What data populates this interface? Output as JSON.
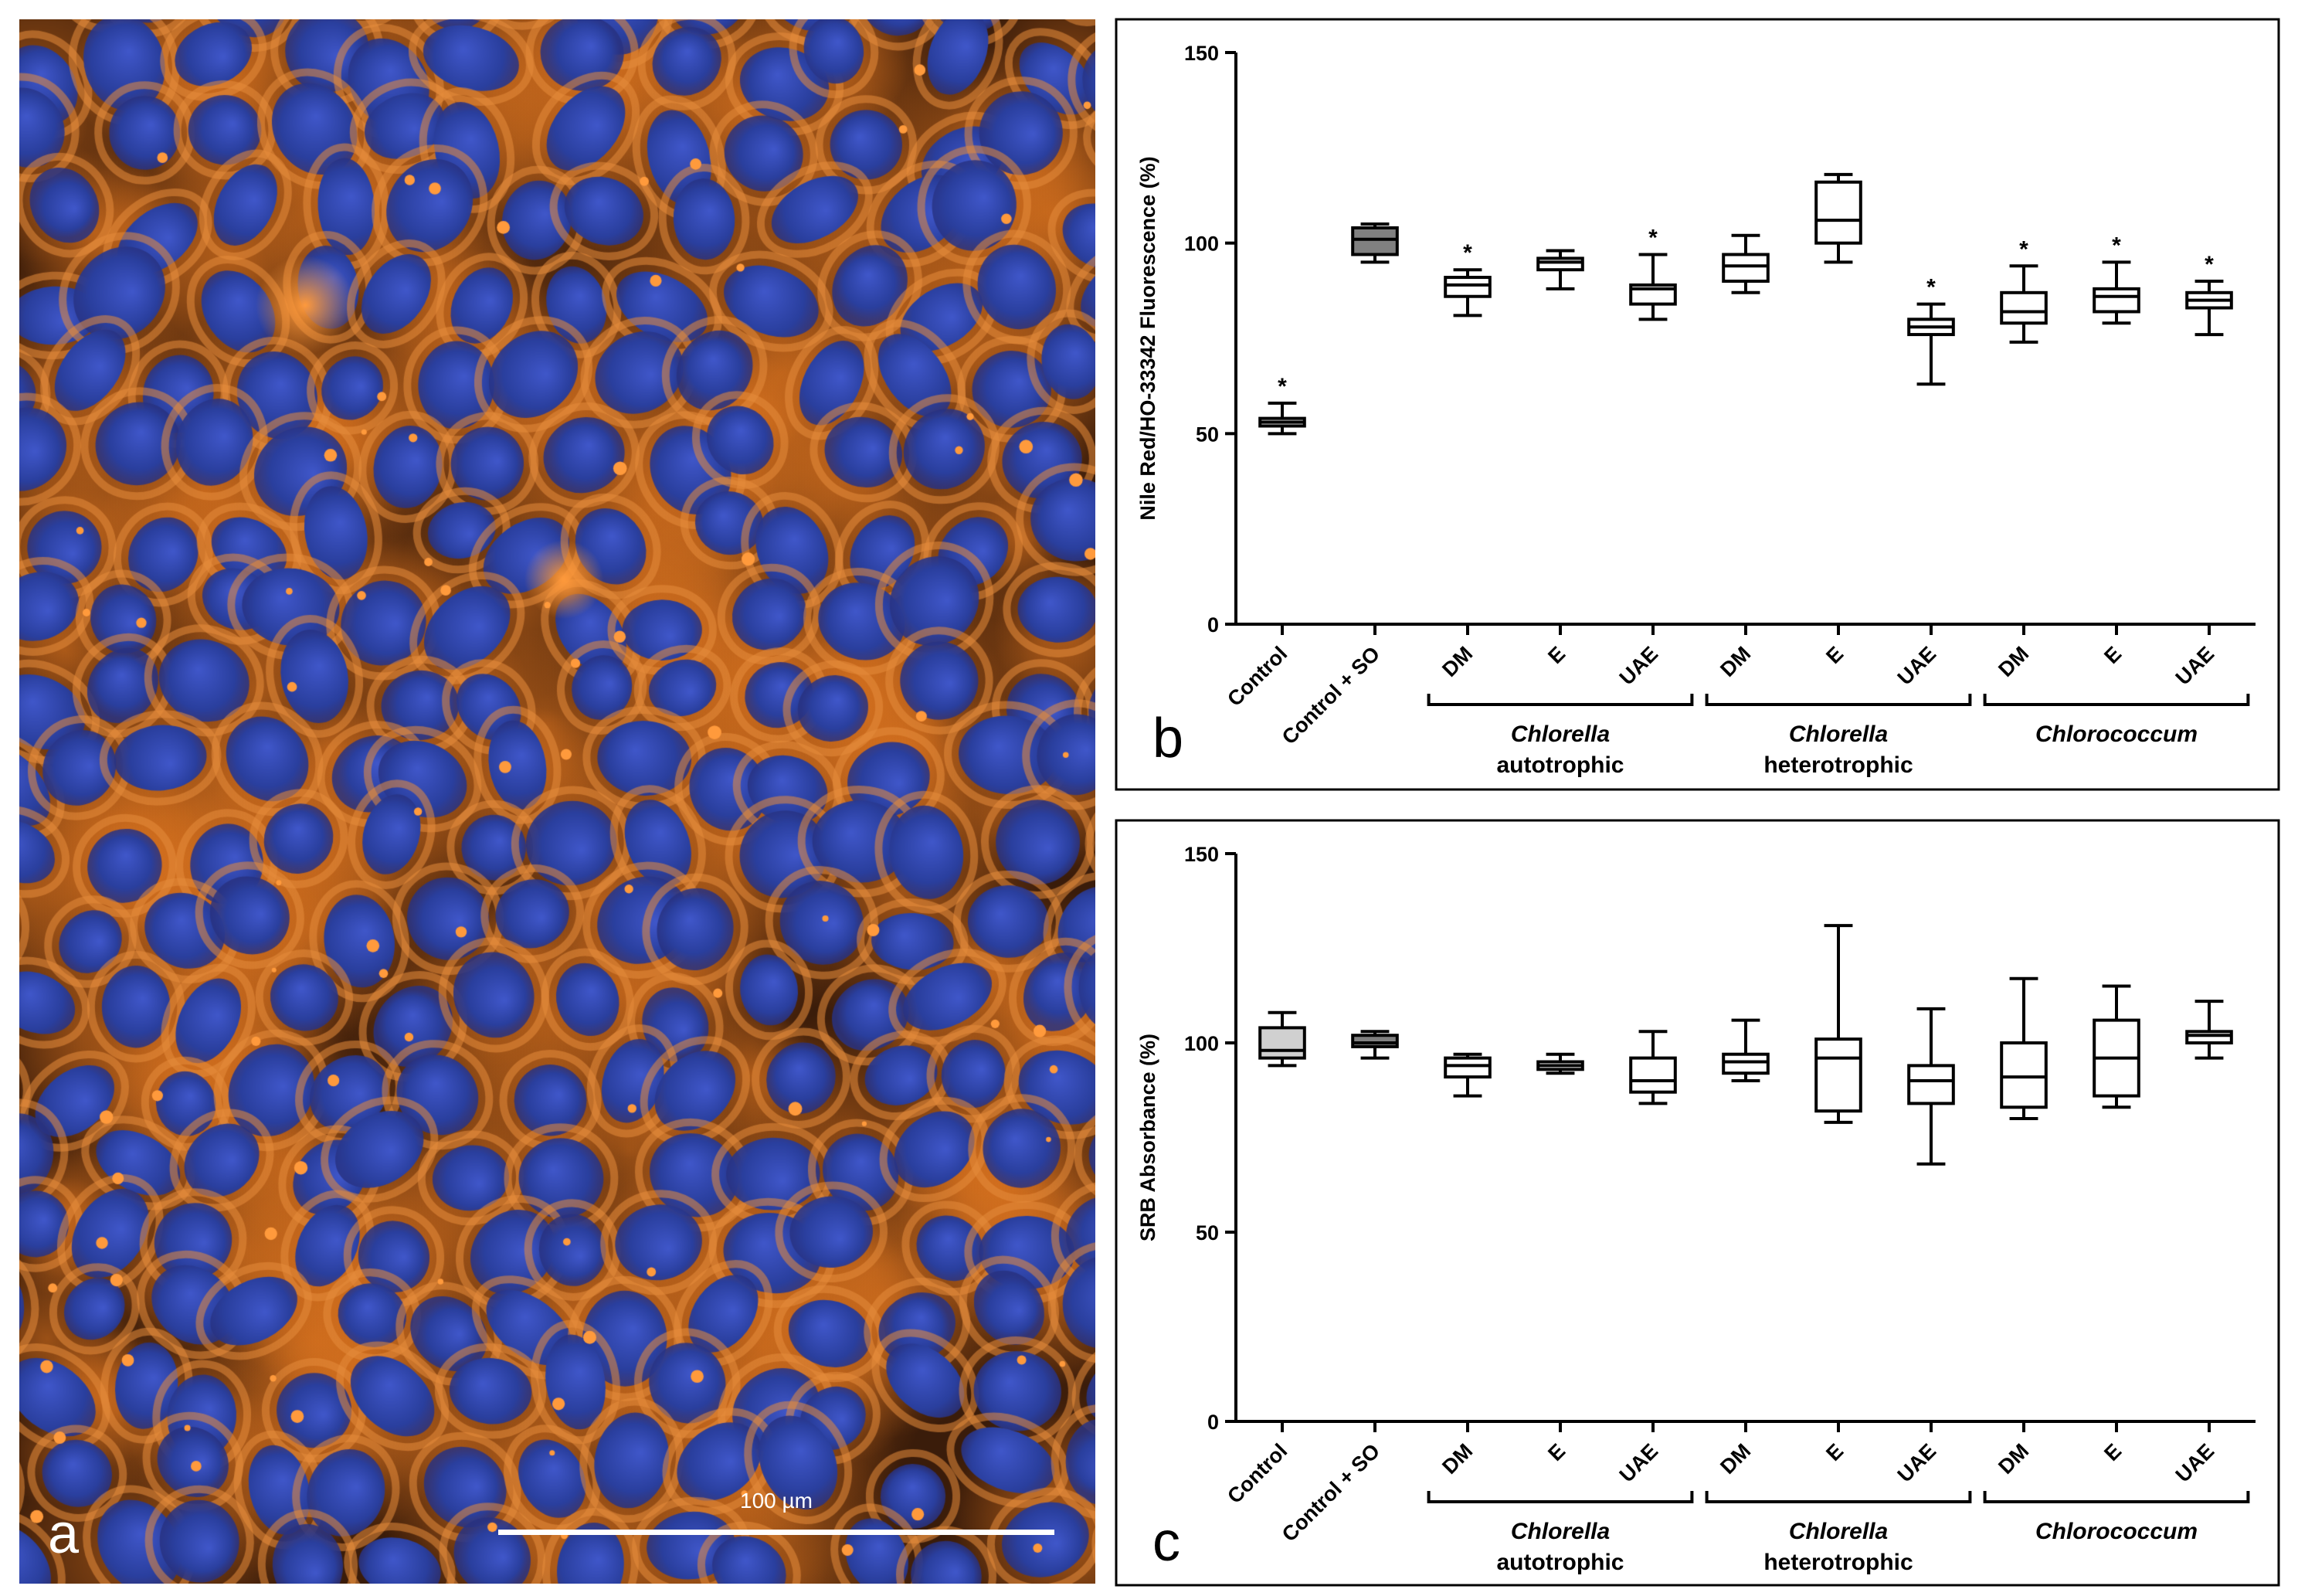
{
  "panels": {
    "a": {
      "letter": "a",
      "scale_bar_label": "100 µm",
      "colors": {
        "background": "#3a1c0a",
        "cytoplasm": "#d8721f",
        "nucleus": "#2a3f9e",
        "lipid": "#ff9a3c"
      }
    },
    "b": {
      "letter": "b",
      "chart_data": {
        "type": "box",
        "ylabel": "Nile Red/HO-33342 Fluorescence (%)",
        "ylim": [
          0,
          150
        ],
        "yticks": [
          0,
          50,
          100,
          150
        ],
        "categories": [
          "Control",
          "Control + SO",
          "DM",
          "E",
          "UAE",
          "DM",
          "E",
          "UAE",
          "DM",
          "E",
          "UAE"
        ],
        "groups": [
          {
            "name": "Chlorella",
            "sub": "autotrophic",
            "from": 2,
            "to": 4
          },
          {
            "name": "Chlorella",
            "sub": "heterotrophic",
            "from": 5,
            "to": 7
          },
          {
            "name": "Chlorococcum",
            "sub": "",
            "from": 8,
            "to": 10
          }
        ],
        "boxes": [
          {
            "min": 50,
            "q1": 52,
            "median": 53,
            "q3": 54,
            "max": 58,
            "fill": "#d0d0d0",
            "sig": "*"
          },
          {
            "min": 95,
            "q1": 97,
            "median": 101,
            "q3": 104,
            "max": 105,
            "fill": "#808080",
            "sig": ""
          },
          {
            "min": 81,
            "q1": 86,
            "median": 89,
            "q3": 91,
            "max": 93,
            "fill": "#ffffff",
            "sig": "*"
          },
          {
            "min": 88,
            "q1": 93,
            "median": 95,
            "q3": 96,
            "max": 98,
            "fill": "#ffffff",
            "sig": ""
          },
          {
            "min": 80,
            "q1": 84,
            "median": 88,
            "q3": 89,
            "max": 97,
            "fill": "#ffffff",
            "sig": "*"
          },
          {
            "min": 87,
            "q1": 90,
            "median": 94,
            "q3": 97,
            "max": 102,
            "fill": "#ffffff",
            "sig": ""
          },
          {
            "min": 95,
            "q1": 100,
            "median": 106,
            "q3": 116,
            "max": 118,
            "fill": "#ffffff",
            "sig": ""
          },
          {
            "min": 63,
            "q1": 76,
            "median": 78,
            "q3": 80,
            "max": 84,
            "fill": "#ffffff",
            "sig": "*"
          },
          {
            "min": 74,
            "q1": 79,
            "median": 82,
            "q3": 87,
            "max": 94,
            "fill": "#ffffff",
            "sig": "*"
          },
          {
            "min": 79,
            "q1": 82,
            "median": 86,
            "q3": 88,
            "max": 95,
            "fill": "#ffffff",
            "sig": "*"
          },
          {
            "min": 76,
            "q1": 83,
            "median": 85,
            "q3": 87,
            "max": 90,
            "fill": "#ffffff",
            "sig": "*"
          }
        ]
      }
    },
    "c": {
      "letter": "c",
      "chart_data": {
        "type": "box",
        "ylabel": "SRB Absorbance (%)",
        "ylim": [
          0,
          150
        ],
        "yticks": [
          0,
          50,
          100,
          150
        ],
        "categories": [
          "Control",
          "Control + SO",
          "DM",
          "E",
          "UAE",
          "DM",
          "E",
          "UAE",
          "DM",
          "E",
          "UAE"
        ],
        "groups": [
          {
            "name": "Chlorella",
            "sub": "autotrophic",
            "from": 2,
            "to": 4
          },
          {
            "name": "Chlorella",
            "sub": "heterotrophic",
            "from": 5,
            "to": 7
          },
          {
            "name": "Chlorococcum",
            "sub": "",
            "from": 8,
            "to": 10
          }
        ],
        "boxes": [
          {
            "min": 94,
            "q1": 96,
            "median": 98,
            "q3": 104,
            "max": 108,
            "fill": "#d0d0d0",
            "sig": ""
          },
          {
            "min": 96,
            "q1": 99,
            "median": 100,
            "q3": 102,
            "max": 103,
            "fill": "#808080",
            "sig": ""
          },
          {
            "min": 86,
            "q1": 91,
            "median": 94,
            "q3": 96,
            "max": 97,
            "fill": "#ffffff",
            "sig": ""
          },
          {
            "min": 92,
            "q1": 93,
            "median": 94,
            "q3": 95,
            "max": 97,
            "fill": "#ffffff",
            "sig": ""
          },
          {
            "min": 84,
            "q1": 87,
            "median": 90,
            "q3": 96,
            "max": 103,
            "fill": "#ffffff",
            "sig": ""
          },
          {
            "min": 90,
            "q1": 92,
            "median": 95,
            "q3": 97,
            "max": 106,
            "fill": "#ffffff",
            "sig": ""
          },
          {
            "min": 79,
            "q1": 82,
            "median": 96,
            "q3": 101,
            "max": 131,
            "fill": "#ffffff",
            "sig": ""
          },
          {
            "min": 68,
            "q1": 84,
            "median": 90,
            "q3": 94,
            "max": 109,
            "fill": "#ffffff",
            "sig": ""
          },
          {
            "min": 80,
            "q1": 83,
            "median": 91,
            "q3": 100,
            "max": 117,
            "fill": "#ffffff",
            "sig": ""
          },
          {
            "min": 83,
            "q1": 86,
            "median": 96,
            "q3": 106,
            "max": 115,
            "fill": "#ffffff",
            "sig": ""
          },
          {
            "min": 96,
            "q1": 100,
            "median": 102,
            "q3": 103,
            "max": 111,
            "fill": "#ffffff",
            "sig": ""
          }
        ]
      }
    }
  }
}
